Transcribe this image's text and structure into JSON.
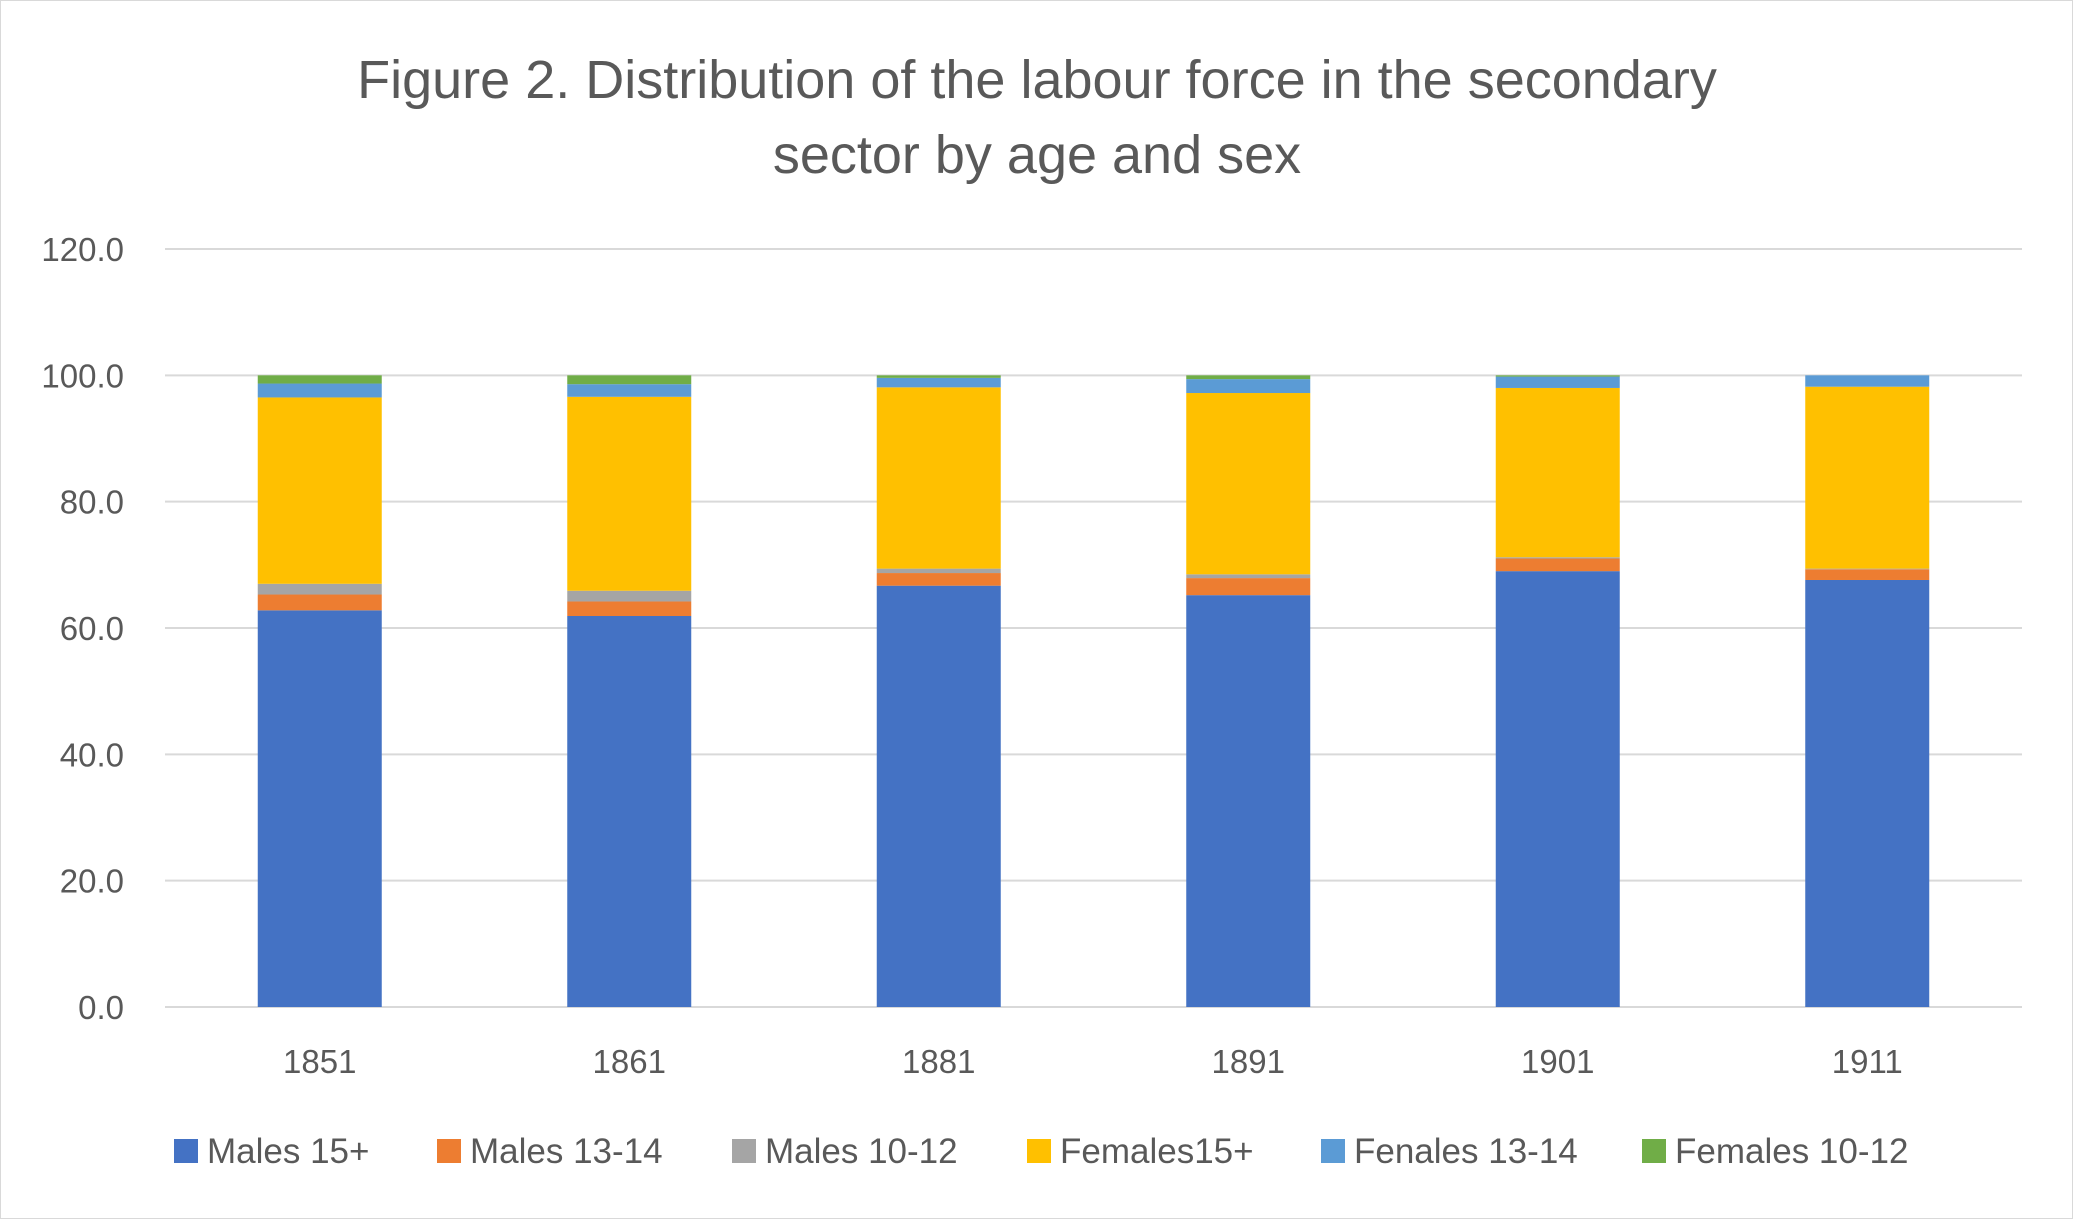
{
  "chart_data": {
    "type": "bar",
    "stacked": true,
    "title": "Figure 2. Distribution of the labour force in the secondary sector by age and sex",
    "title_lines": [
      "Figure 2. Distribution of the labour force in the secondary",
      "sector by age and sex"
    ],
    "xlabel": "",
    "ylabel": "",
    "categories": [
      "1851",
      "1861",
      "1881",
      "1891",
      "1901",
      "1911"
    ],
    "ylim": [
      0,
      120
    ],
    "yticks": [
      "0.0",
      "20.0",
      "40.0",
      "60.0",
      "80.0",
      "100.0",
      "120.0"
    ],
    "grid": true,
    "legend_position": "bottom",
    "series": [
      {
        "name": "Males 15+",
        "color": "#4472C4",
        "values": [
          62.8,
          61.9,
          66.7,
          65.2,
          69.0,
          67.6
        ]
      },
      {
        "name": "Males 13-14",
        "color": "#ED7D31",
        "values": [
          2.5,
          2.3,
          2.0,
          2.7,
          2.0,
          1.7
        ]
      },
      {
        "name": "Males 10-12",
        "color": "#A5A5A5",
        "values": [
          1.7,
          1.7,
          0.7,
          0.6,
          0.2,
          0.1
        ]
      },
      {
        "name": "Females15+",
        "color": "#FFC000",
        "values": [
          29.5,
          30.7,
          28.7,
          28.7,
          26.8,
          28.8
        ]
      },
      {
        "name": "Fenales 13-14",
        "color": "#5B9BD5",
        "values": [
          2.2,
          2.0,
          1.5,
          2.2,
          1.8,
          1.8
        ]
      },
      {
        "name": "Females 10-12",
        "color": "#70AD47",
        "values": [
          1.3,
          1.4,
          0.4,
          0.6,
          0.2,
          0.0
        ]
      }
    ]
  }
}
